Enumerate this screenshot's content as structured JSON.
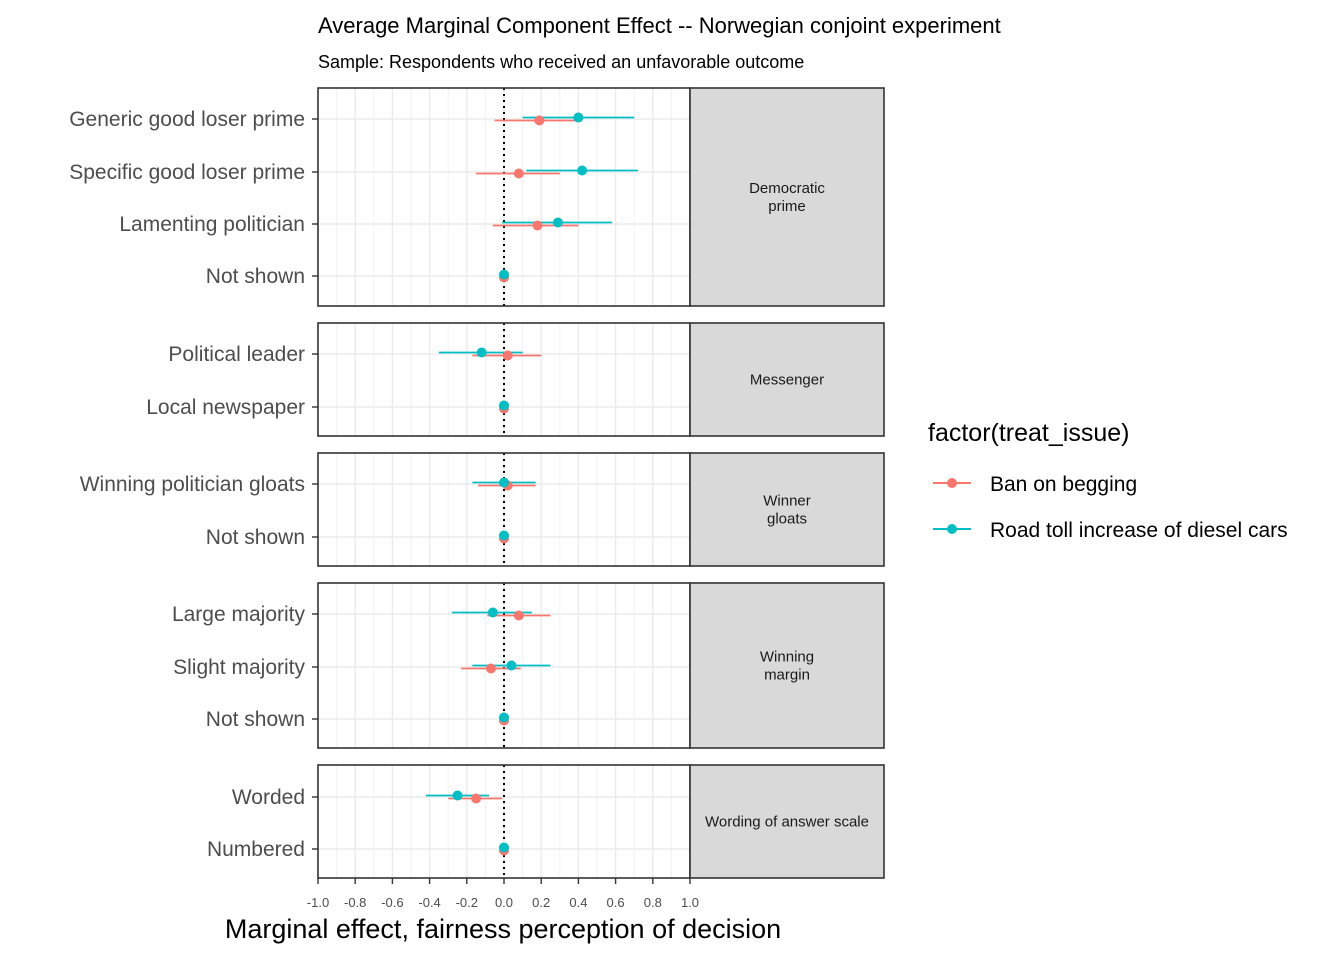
{
  "chart_data": {
    "type": "scatter",
    "subtype": "dot-and-whisker, faceted",
    "title": "Average Marginal Component Effect -- Norwegian conjoint experiment",
    "subtitle": "Sample: Respondents who received an unfavorable outcome",
    "xlabel": "Marginal effect, fairness perception of decision",
    "xlim": [
      -1.0,
      1.0
    ],
    "xticks": [
      "-1.0",
      "-0.8",
      "-0.6",
      "-0.4",
      "-0.2",
      "0.0",
      "0.2",
      "0.4",
      "0.6",
      "0.8",
      "1.0"
    ],
    "reference_line": 0,
    "grid": true,
    "legend": {
      "title": "factor(treat_issue)",
      "position": "right",
      "entries": [
        {
          "label": "Ban on begging",
          "color": "#F8766D"
        },
        {
          "label": "Road toll increase of diesel cars",
          "color": "#00BFC4"
        }
      ]
    },
    "facets": [
      {
        "strip": [
          "Democratic",
          "prime"
        ],
        "levels": [
          "Generic good loser prime",
          "Specific good loser prime",
          "Lamenting politician",
          "Not shown"
        ],
        "series": [
          {
            "name": "Ban on begging",
            "estimate": [
              0.19,
              0.08,
              0.18,
              0.0
            ],
            "lower": [
              -0.05,
              -0.15,
              -0.06,
              0.0
            ],
            "upper": [
              0.42,
              0.3,
              0.4,
              0.0
            ]
          },
          {
            "name": "Road toll increase of diesel cars",
            "estimate": [
              0.4,
              0.42,
              0.29,
              0.0
            ],
            "lower": [
              0.1,
              0.12,
              -0.01,
              0.0
            ],
            "upper": [
              0.7,
              0.72,
              0.58,
              0.0
            ]
          }
        ]
      },
      {
        "strip": [
          "Messenger"
        ],
        "levels": [
          "Political leader",
          "Local newspaper"
        ],
        "series": [
          {
            "name": "Ban on begging",
            "estimate": [
              0.02,
              0.0
            ],
            "lower": [
              -0.17,
              0.0
            ],
            "upper": [
              0.2,
              0.0
            ]
          },
          {
            "name": "Road toll increase of diesel cars",
            "estimate": [
              -0.12,
              0.0
            ],
            "lower": [
              -0.35,
              0.0
            ],
            "upper": [
              0.1,
              0.0
            ]
          }
        ]
      },
      {
        "strip": [
          "Winner",
          "gloats"
        ],
        "levels": [
          "Winning politician gloats",
          "Not shown"
        ],
        "series": [
          {
            "name": "Ban on begging",
            "estimate": [
              0.02,
              0.0
            ],
            "lower": [
              -0.14,
              0.0
            ],
            "upper": [
              0.17,
              0.0
            ]
          },
          {
            "name": "Road toll increase of diesel cars",
            "estimate": [
              0.0,
              0.0
            ],
            "lower": [
              -0.17,
              0.0
            ],
            "upper": [
              0.17,
              0.0
            ]
          }
        ]
      },
      {
        "strip": [
          "Winning",
          "margin"
        ],
        "levels": [
          "Large majority",
          "Slight majority",
          "Not shown"
        ],
        "series": [
          {
            "name": "Ban on begging",
            "estimate": [
              0.08,
              -0.07,
              0.0
            ],
            "lower": [
              -0.09,
              -0.23,
              0.0
            ],
            "upper": [
              0.25,
              0.09,
              0.0
            ]
          },
          {
            "name": "Road toll increase of diesel cars",
            "estimate": [
              -0.06,
              0.04,
              0.0
            ],
            "lower": [
              -0.28,
              -0.17,
              0.0
            ],
            "upper": [
              0.15,
              0.25,
              0.0
            ]
          }
        ]
      },
      {
        "strip": [
          "Wording of answer scale"
        ],
        "levels": [
          "Worded",
          "Numbered"
        ],
        "series": [
          {
            "name": "Ban on begging",
            "estimate": [
              -0.15,
              0.0
            ],
            "lower": [
              -0.3,
              0.0
            ],
            "upper": [
              -0.01,
              0.0
            ]
          },
          {
            "name": "Road toll increase of diesel cars",
            "estimate": [
              -0.25,
              0.0
            ],
            "lower": [
              -0.42,
              0.0
            ],
            "upper": [
              -0.08,
              0.0
            ]
          }
        ]
      }
    ]
  }
}
